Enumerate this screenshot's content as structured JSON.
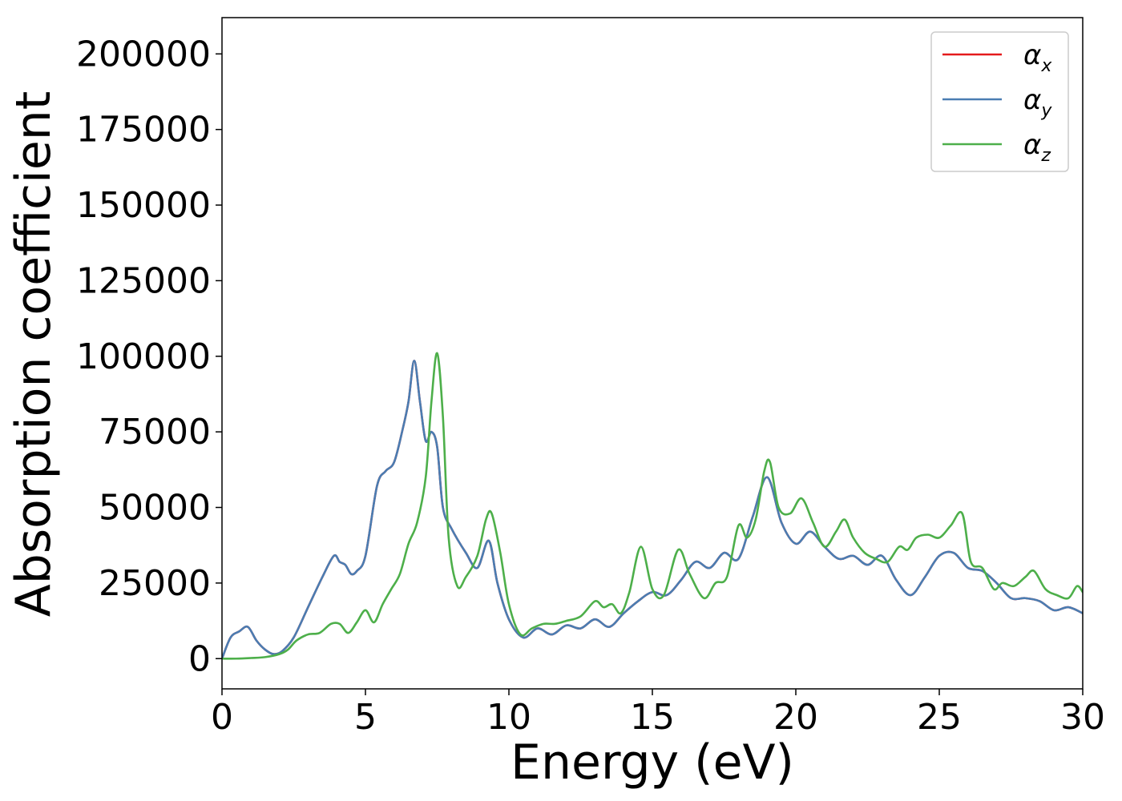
{
  "chart_data": {
    "type": "line",
    "xlabel": "Energy (eV)",
    "ylabel": "Absorption coefficient",
    "xlim": [
      0,
      30
    ],
    "ylim": [
      -10000,
      212000
    ],
    "xticks": [
      0,
      5,
      10,
      15,
      20,
      25,
      30
    ],
    "xtick_labels": [
      "0",
      "5",
      "10",
      "15",
      "20",
      "25",
      "30"
    ],
    "yticks": [
      0,
      25000,
      50000,
      75000,
      100000,
      125000,
      150000,
      175000,
      200000
    ],
    "ytick_labels": [
      "0",
      "25000",
      "50000",
      "75000",
      "100000",
      "125000",
      "150000",
      "175000",
      "200000"
    ],
    "grid": false,
    "legend_position": "top-right",
    "series": [
      {
        "name": "α_x",
        "legend_base": "α",
        "legend_sub": "x",
        "color": "#e41a1c",
        "x": [
          0,
          0.3,
          0.6,
          0.9,
          1.2,
          1.5,
          1.8,
          2.1,
          2.5,
          3.0,
          3.5,
          3.9,
          4.1,
          4.3,
          4.5,
          4.7,
          5.0,
          5.4,
          5.7,
          6.0,
          6.3,
          6.5,
          6.7,
          6.9,
          7.1,
          7.3,
          7.5,
          7.7,
          8.0,
          8.5,
          8.9,
          9.3,
          9.6,
          10.0,
          10.5,
          11.0,
          11.5,
          12.0,
          12.5,
          13.0,
          13.5,
          14.0,
          14.5,
          15.0,
          15.5,
          16.0,
          16.5,
          17.0,
          17.5,
          18.0,
          18.5,
          19.0,
          19.5,
          20.0,
          20.5,
          21.0,
          21.5,
          22.0,
          22.5,
          23.0,
          23.5,
          24.0,
          24.5,
          25.0,
          25.5,
          26.0,
          26.5,
          27.0,
          27.5,
          28.0,
          28.5,
          29.0,
          29.5,
          30.0
        ],
        "y": [
          0,
          7000,
          9000,
          10500,
          6000,
          3000,
          1500,
          2500,
          7000,
          17000,
          27000,
          34000,
          32000,
          31000,
          28000,
          29000,
          34000,
          57000,
          62000,
          65000,
          76000,
          85000,
          98500,
          85000,
          72000,
          75000,
          70000,
          50000,
          43000,
          35000,
          30000,
          39000,
          25000,
          13000,
          7000,
          10000,
          8000,
          11000,
          10000,
          13000,
          10500,
          15000,
          19000,
          22000,
          21000,
          26000,
          32000,
          30000,
          35000,
          33000,
          47000,
          60000,
          45000,
          38000,
          42000,
          37000,
          33000,
          34000,
          31000,
          34000,
          26000,
          21000,
          27000,
          34000,
          35000,
          30000,
          29000,
          25000,
          20000,
          20000,
          19000,
          16000,
          17000,
          15000
        ]
      },
      {
        "name": "α_y",
        "legend_base": "α",
        "legend_sub": "y",
        "color": "#4a7db2",
        "x": [
          0,
          0.3,
          0.6,
          0.9,
          1.2,
          1.5,
          1.8,
          2.1,
          2.5,
          3.0,
          3.5,
          3.9,
          4.1,
          4.3,
          4.5,
          4.7,
          5.0,
          5.4,
          5.7,
          6.0,
          6.3,
          6.5,
          6.7,
          6.9,
          7.1,
          7.3,
          7.5,
          7.7,
          8.0,
          8.5,
          8.9,
          9.3,
          9.6,
          10.0,
          10.5,
          11.0,
          11.5,
          12.0,
          12.5,
          13.0,
          13.5,
          14.0,
          14.5,
          15.0,
          15.5,
          16.0,
          16.5,
          17.0,
          17.5,
          18.0,
          18.5,
          19.0,
          19.5,
          20.0,
          20.5,
          21.0,
          21.5,
          22.0,
          22.5,
          23.0,
          23.5,
          24.0,
          24.5,
          25.0,
          25.5,
          26.0,
          26.5,
          27.0,
          27.5,
          28.0,
          28.5,
          29.0,
          29.5,
          30.0
        ],
        "y": [
          0,
          7000,
          9000,
          10500,
          6000,
          3000,
          1500,
          2500,
          7000,
          17000,
          27000,
          34000,
          32000,
          31000,
          28000,
          29000,
          34000,
          57000,
          62000,
          65000,
          76000,
          85000,
          98500,
          85000,
          72000,
          75000,
          70000,
          50000,
          43000,
          35000,
          30000,
          39000,
          25000,
          13000,
          7000,
          10000,
          8000,
          11000,
          10000,
          13000,
          10500,
          15000,
          19000,
          22000,
          21000,
          26000,
          32000,
          30000,
          35000,
          33000,
          47000,
          60000,
          45000,
          38000,
          42000,
          37000,
          33000,
          34000,
          31000,
          34000,
          26000,
          21000,
          27000,
          34000,
          35000,
          30000,
          29000,
          25000,
          20000,
          20000,
          19000,
          16000,
          17000,
          15000
        ]
      },
      {
        "name": "α_z",
        "legend_base": "α",
        "legend_sub": "z",
        "color": "#4daf4a",
        "x": [
          0,
          0.5,
          1.0,
          1.5,
          2.0,
          2.3,
          2.6,
          3.0,
          3.4,
          3.8,
          4.1,
          4.4,
          4.7,
          5.0,
          5.3,
          5.6,
          5.9,
          6.2,
          6.5,
          6.8,
          7.1,
          7.3,
          7.5,
          7.7,
          7.9,
          8.2,
          8.5,
          8.9,
          9.2,
          9.4,
          9.7,
          10.0,
          10.4,
          10.8,
          11.2,
          11.6,
          12.0,
          12.5,
          13.0,
          13.3,
          13.6,
          13.9,
          14.2,
          14.6,
          15.0,
          15.4,
          15.9,
          16.3,
          16.8,
          17.2,
          17.6,
          18.0,
          18.3,
          18.6,
          18.9,
          19.1,
          19.4,
          19.8,
          20.2,
          20.6,
          21.0,
          21.4,
          21.7,
          22.0,
          22.4,
          22.8,
          23.2,
          23.6,
          23.9,
          24.2,
          24.6,
          25.0,
          25.4,
          25.8,
          26.1,
          26.5,
          26.9,
          27.2,
          27.6,
          28.0,
          28.3,
          28.7,
          29.1,
          29.5,
          29.8,
          30.0
        ],
        "y": [
          0,
          0,
          200,
          500,
          1500,
          3000,
          6000,
          8000,
          8500,
          11500,
          11500,
          8500,
          12000,
          16000,
          12000,
          18000,
          23000,
          28000,
          38000,
          45000,
          60000,
          85000,
          101000,
          80000,
          40000,
          24000,
          27000,
          34000,
          46000,
          48000,
          35000,
          18000,
          8000,
          10000,
          11500,
          11500,
          12500,
          14000,
          19000,
          17000,
          18000,
          15000,
          22000,
          37000,
          23000,
          21000,
          36000,
          28000,
          20000,
          25000,
          27000,
          44000,
          40000,
          46000,
          62000,
          65000,
          50000,
          48000,
          53000,
          45000,
          37000,
          42000,
          46000,
          40000,
          35000,
          33000,
          32000,
          37000,
          36000,
          40000,
          41000,
          40000,
          44000,
          48000,
          32000,
          30000,
          23000,
          25000,
          24000,
          27000,
          29000,
          23000,
          21000,
          20000,
          24000,
          22000
        ]
      }
    ]
  }
}
